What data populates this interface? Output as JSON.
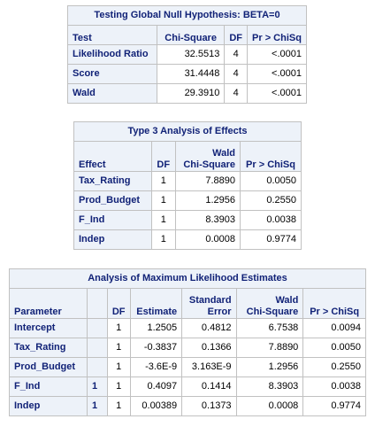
{
  "global_null": {
    "title": "Testing Global Null Hypothesis: BETA=0",
    "headers": [
      "Test",
      "Chi-Square",
      "DF",
      "Pr > ChiSq"
    ],
    "rows": [
      [
        "Likelihood Ratio",
        "32.5513",
        "4",
        "<.0001"
      ],
      [
        "Score",
        "31.4448",
        "4",
        "<.0001"
      ],
      [
        "Wald",
        "29.3910",
        "4",
        "<.0001"
      ]
    ]
  },
  "type3": {
    "title": "Type 3 Analysis of Effects",
    "headers": [
      "Effect",
      "DF",
      "Wald\nChi-Square",
      "Pr > ChiSq"
    ],
    "rows": [
      [
        "Tax_Rating",
        "1",
        "7.8890",
        "0.0050"
      ],
      [
        "Prod_Budget",
        "1",
        "1.2956",
        "0.2550"
      ],
      [
        "F_Ind",
        "1",
        "8.3903",
        "0.0038"
      ],
      [
        "Indep",
        "1",
        "0.0008",
        "0.9774"
      ]
    ]
  },
  "mle": {
    "title": "Analysis of Maximum Likelihood Estimates",
    "headers": [
      "Parameter",
      "",
      "DF",
      "Estimate",
      "Standard\nError",
      "Wald\nChi-Square",
      "Pr > ChiSq"
    ],
    "rows": [
      [
        "Intercept",
        "",
        "1",
        "1.2505",
        "0.4812",
        "6.7538",
        "0.0094"
      ],
      [
        "Tax_Rating",
        "",
        "1",
        "-0.3837",
        "0.1366",
        "7.8890",
        "0.0050"
      ],
      [
        "Prod_Budget",
        "",
        "1",
        "-3.6E-9",
        "3.163E-9",
        "1.2956",
        "0.2550"
      ],
      [
        "F_Ind",
        "1",
        "1",
        "0.4097",
        "0.1414",
        "8.3903",
        "0.0038"
      ],
      [
        "Indep",
        "1",
        "1",
        "0.00389",
        "0.1373",
        "0.0008",
        "0.9774"
      ]
    ]
  }
}
